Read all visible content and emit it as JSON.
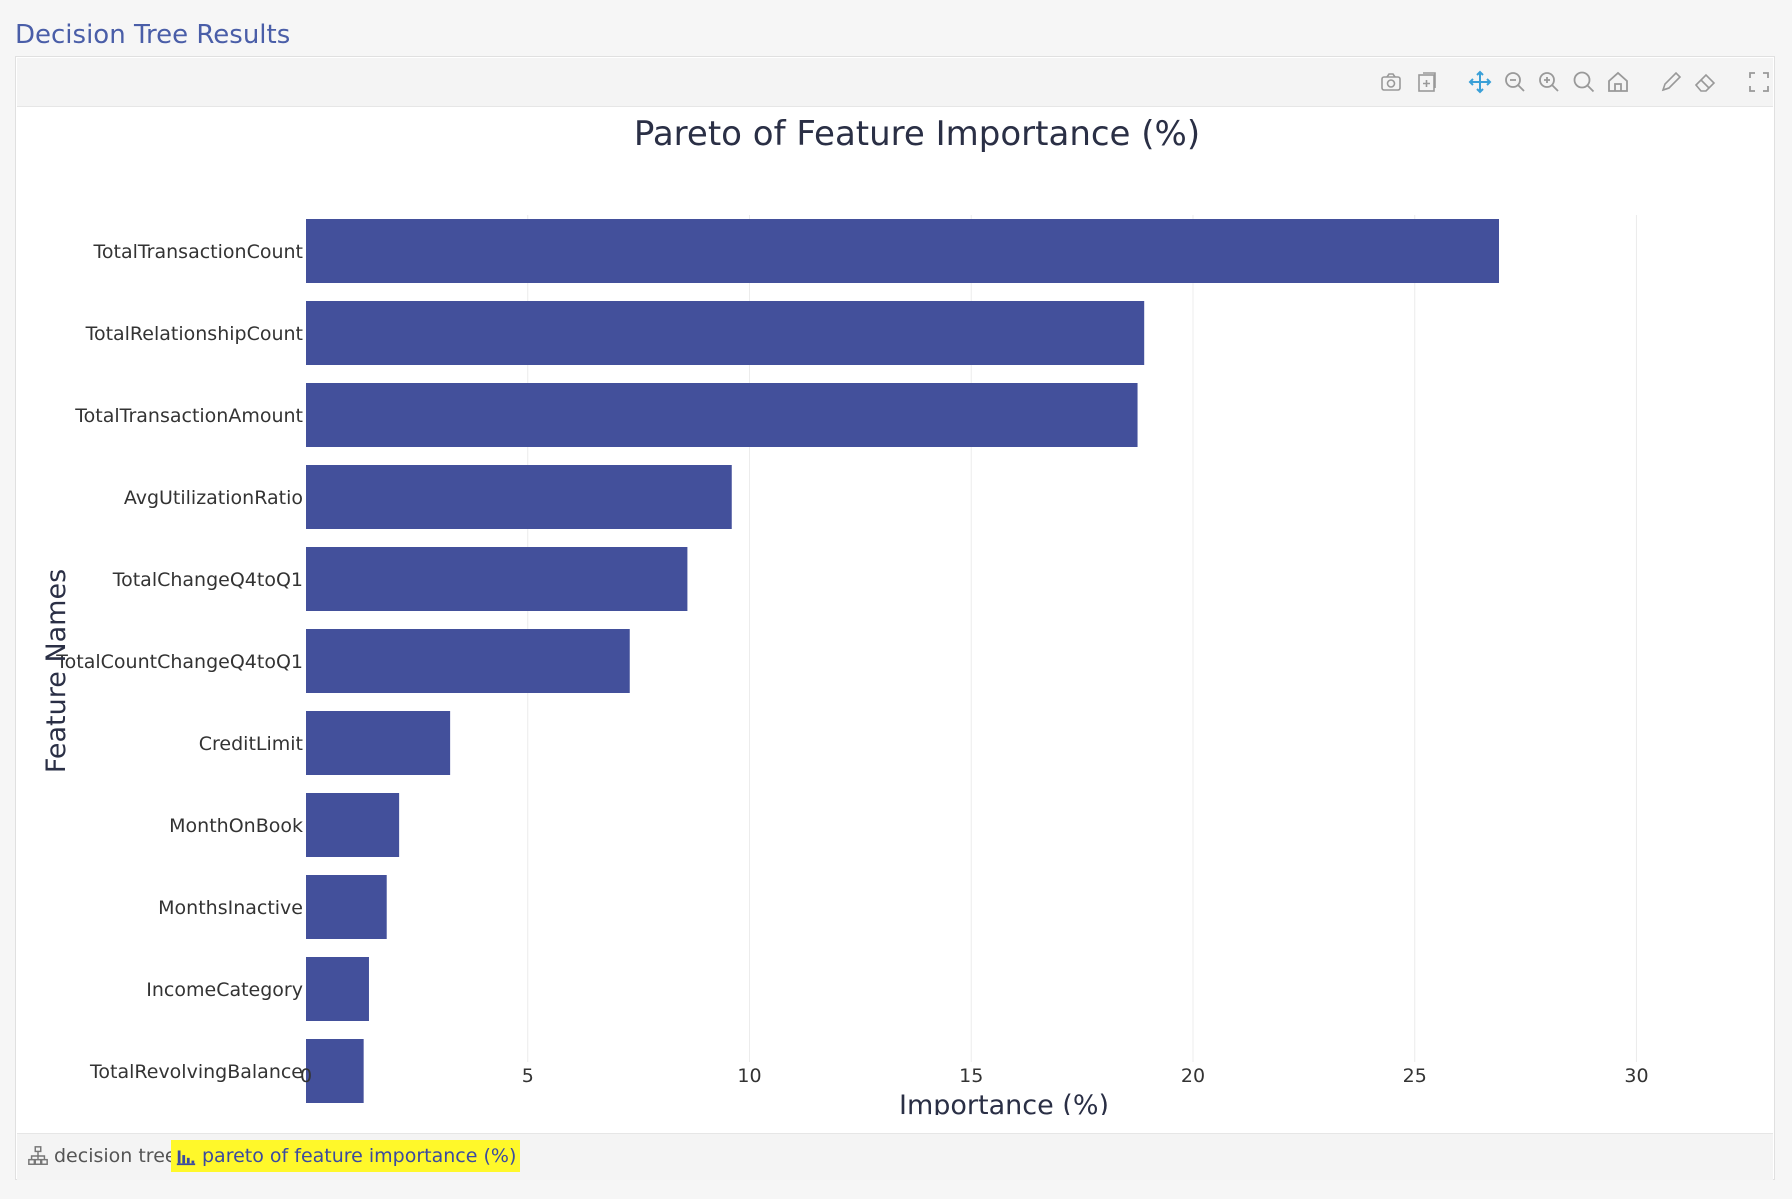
{
  "page": {
    "title": "Decision Tree Results"
  },
  "toolbar": {
    "icons": [
      "camera-icon",
      "export-icon",
      "pan-icon",
      "zoom-out-icon",
      "zoom-in-icon",
      "autoscale-icon",
      "home-icon",
      "pencil-icon",
      "eraser-icon",
      "fullscreen-icon"
    ]
  },
  "colors": {
    "bar": "#43509b",
    "grid": "#ececec",
    "highlight": "#fff82a",
    "title_text": "#4a5ea8"
  },
  "chart_data": {
    "type": "bar",
    "orientation": "horizontal",
    "title": "Pareto of Feature Importance (%)",
    "xlabel": "Importance (%)",
    "ylabel": "Feature Names",
    "categories": [
      "TotalTransactionCount",
      "TotalRelationshipCount",
      "TotalTransactionAmount",
      "AvgUtilizationRatio",
      "TotalChangeQ4toQ1",
      "TotalCountChangeQ4toQ1",
      "CreditLimit",
      "MonthOnBook",
      "MonthsInactive",
      "IncomeCategory",
      "TotalRevolvingBalance"
    ],
    "values": [
      26.9,
      18.9,
      18.75,
      9.6,
      8.6,
      7.3,
      3.25,
      2.1,
      1.82,
      1.42,
      1.3
    ],
    "xlim": [
      0,
      31.5
    ],
    "xticks": [
      "0",
      "5",
      "10",
      "15",
      "20",
      "25",
      "30"
    ],
    "xtick_values": [
      0,
      5,
      10,
      15,
      20,
      25,
      30
    ],
    "grid": true,
    "legend": "none"
  },
  "footer": {
    "tabs": [
      {
        "label": "decision tree",
        "icon": "tree-icon",
        "active": false
      },
      {
        "label": "pareto of feature importance (%)",
        "icon": "bar-chart-icon",
        "active": true
      }
    ]
  }
}
